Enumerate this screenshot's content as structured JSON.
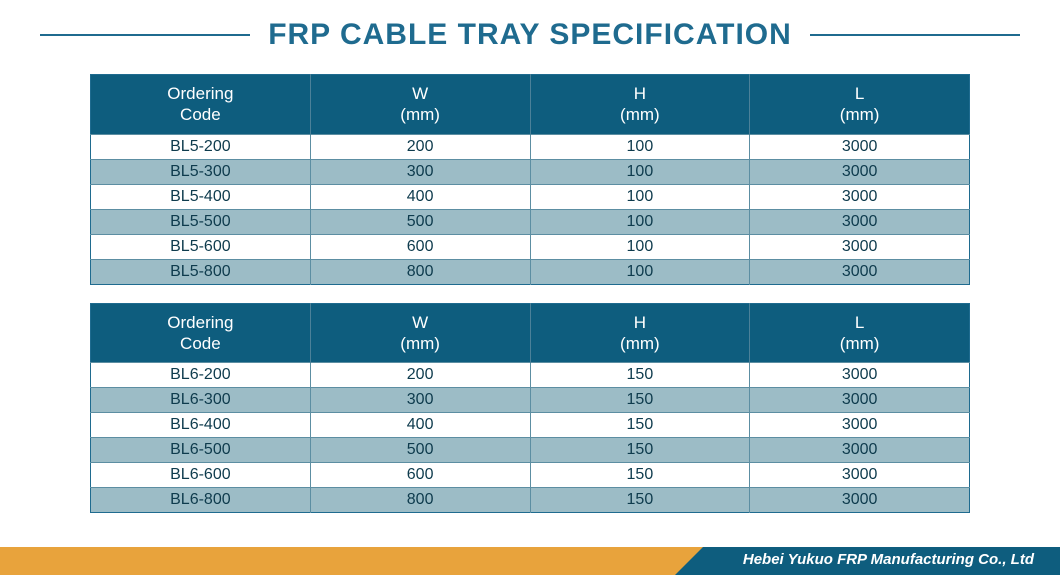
{
  "title": "FRP CABLE TRAY SPECIFICATION",
  "colors": {
    "accent": "#1f6b8f",
    "header_bg": "#0e5d7e",
    "row_alt_bg": "#9cbcc6",
    "row_bg": "#ffffff",
    "cell_text": "#0e3b4d",
    "footer_orange": "#e8a33c",
    "footer_blue": "#0e5d7e"
  },
  "tables": [
    {
      "columns": [
        "Ordering\nCode",
        "W\n(mm)",
        "H\n(mm)",
        "L\n(mm)"
      ],
      "column_widths_pct": [
        25,
        25,
        25,
        25
      ],
      "rows": [
        [
          "BL5-200",
          "200",
          "100",
          "3000"
        ],
        [
          "BL5-300",
          "300",
          "100",
          "3000"
        ],
        [
          "BL5-400",
          "400",
          "100",
          "3000"
        ],
        [
          "BL5-500",
          "500",
          "100",
          "3000"
        ],
        [
          "BL5-600",
          "600",
          "100",
          "3000"
        ],
        [
          "BL5-800",
          "800",
          "100",
          "3000"
        ]
      ]
    },
    {
      "columns": [
        "Ordering\nCode",
        "W\n(mm)",
        "H\n(mm)",
        "L\n(mm)"
      ],
      "column_widths_pct": [
        25,
        25,
        25,
        25
      ],
      "rows": [
        [
          "BL6-200",
          "200",
          "150",
          "3000"
        ],
        [
          "BL6-300",
          "300",
          "150",
          "3000"
        ],
        [
          "BL6-400",
          "400",
          "150",
          "3000"
        ],
        [
          "BL6-500",
          "500",
          "150",
          "3000"
        ],
        [
          "BL6-600",
          "600",
          "150",
          "3000"
        ],
        [
          "BL6-800",
          "800",
          "150",
          "3000"
        ]
      ]
    }
  ],
  "footer_text": "Hebei Yukuo FRP Manufacturing Co., Ltd"
}
